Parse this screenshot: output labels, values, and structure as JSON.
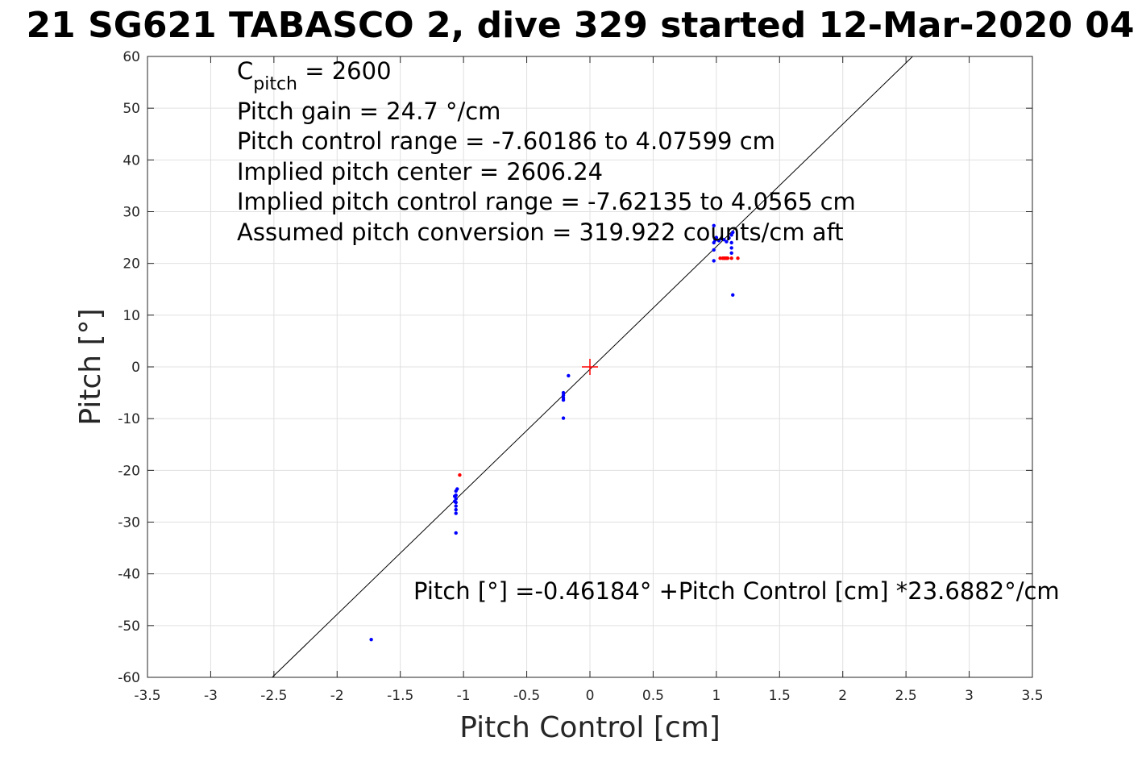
{
  "chart_data": {
    "type": "scatter",
    "title": "21 SG621 TABASCO 2, dive 329 started 12-Mar-2020 04",
    "xlabel": "Pitch Control [cm]",
    "ylabel": "Pitch [°]",
    "xlim": [
      -3.5,
      3.5
    ],
    "ylim": [
      -60,
      60
    ],
    "xticks": [
      -3.5,
      -3,
      -2.5,
      -2,
      -1.5,
      -1,
      -0.5,
      0,
      0.5,
      1,
      1.5,
      2,
      2.5,
      3,
      3.5
    ],
    "xtick_labels": [
      "-3.5",
      "-3",
      "-2.5",
      "-2",
      "-1.5",
      "-1",
      "-0.5",
      "0",
      "0.5",
      "1",
      "1.5",
      "2",
      "2.5",
      "3",
      "3.5"
    ],
    "yticks": [
      -60,
      -50,
      -40,
      -30,
      -20,
      -10,
      0,
      10,
      20,
      30,
      40,
      50,
      60
    ],
    "ytick_labels": [
      "-60",
      "-50",
      "-40",
      "-30",
      "-20",
      "-10",
      "0",
      "10",
      "20",
      "30",
      "40",
      "50",
      "60"
    ],
    "grid": true,
    "fit_line": {
      "intercept": -0.46184,
      "slope": 23.6882,
      "color": "#000000"
    },
    "center_marker": {
      "x": 0,
      "y": 0,
      "color": "#ff0000"
    },
    "series": [
      {
        "color": "#0000ff",
        "points": [
          [
            -1.73,
            -52.7
          ],
          [
            -1.06,
            -32.1
          ],
          [
            -1.06,
            -24.0
          ],
          [
            -1.06,
            -24.8
          ],
          [
            -1.06,
            -25.5
          ],
          [
            -1.06,
            -26.2
          ],
          [
            -1.06,
            -26.9
          ],
          [
            -1.06,
            -27.6
          ],
          [
            -1.06,
            -28.3
          ],
          [
            -1.07,
            -25.0
          ],
          [
            -1.07,
            -26.0
          ],
          [
            -1.05,
            -23.6
          ],
          [
            -0.21,
            -5.0
          ],
          [
            -0.21,
            -5.5
          ],
          [
            -0.21,
            -6.0
          ],
          [
            -0.21,
            -6.4
          ],
          [
            -0.21,
            -9.9
          ],
          [
            -0.17,
            -1.7
          ],
          [
            0.98,
            27.3
          ],
          [
            0.98,
            24.0
          ],
          [
            0.98,
            22.6
          ],
          [
            0.98,
            20.5
          ],
          [
            0.99,
            24.5
          ],
          [
            1.0,
            25.0
          ],
          [
            1.02,
            24.4
          ],
          [
            1.04,
            24.8
          ],
          [
            1.06,
            24.6
          ],
          [
            1.08,
            24.2
          ],
          [
            1.1,
            24.9
          ],
          [
            1.12,
            25.5
          ],
          [
            1.12,
            24.0
          ],
          [
            1.12,
            23.0
          ],
          [
            1.12,
            22.0
          ],
          [
            1.13,
            26.0
          ],
          [
            1.13,
            13.9
          ]
        ]
      },
      {
        "color": "#ff0000",
        "points": [
          [
            -1.03,
            -20.9
          ],
          [
            1.03,
            21.0
          ],
          [
            1.05,
            21.0
          ],
          [
            1.06,
            21.0
          ],
          [
            1.07,
            21.0
          ],
          [
            1.08,
            21.0
          ],
          [
            1.09,
            21.0
          ],
          [
            1.12,
            21.0
          ],
          [
            1.17,
            21.0
          ]
        ]
      }
    ]
  },
  "annotations": {
    "c_pitch_symbol": "C",
    "c_pitch_subscript": "pitch",
    "c_pitch_rest": " = 2600",
    "pitch_gain": "Pitch gain = 24.7 °/cm",
    "pitch_control_range": "Pitch control range = -7.60186 to 4.07599 cm",
    "implied_center": "Implied pitch center = 2606.24",
    "implied_range": "Implied pitch control range = -7.62135 to 4.0565 cm",
    "conversion": "Assumed pitch conversion = 319.922 counts/cm aft",
    "fit_equation": "Pitch [°] =-0.46184° +Pitch Control [cm] *23.6882°/cm"
  }
}
